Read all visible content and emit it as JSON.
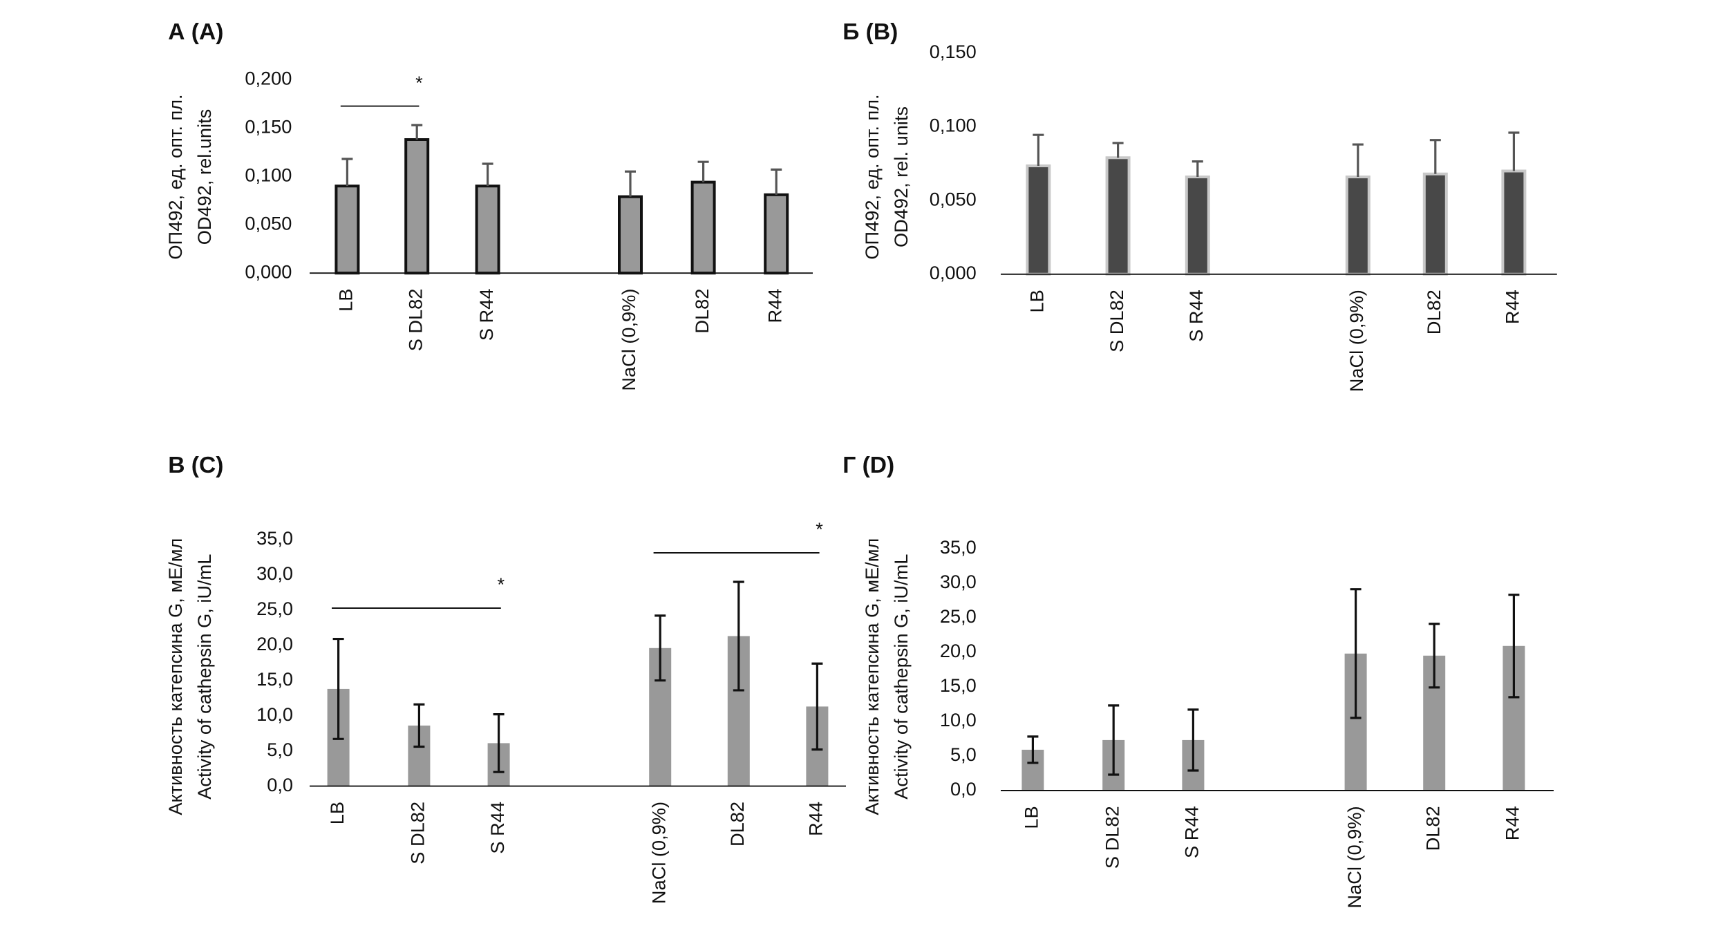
{
  "chart_data": [
    {
      "type": "bar",
      "title": "А (A)",
      "ylabel": [
        "ОП492, ед. опт. пл.",
        "OD492, rel.units"
      ],
      "categories": [
        "LB",
        "S DL82",
        "S R44",
        "NaCl (0,9%)",
        "DL82",
        "R44"
      ],
      "values": [
        0.09,
        0.138,
        0.09,
        0.079,
        0.094,
        0.081
      ],
      "errors": [
        0.028,
        0.015,
        0.023,
        0.026,
        0.021,
        0.026
      ],
      "error_bars": "upper",
      "color": "#999999",
      "edge_color": "#111111",
      "error_color": "#555555",
      "ylim": [
        0,
        0.2
      ],
      "yticks": [
        {
          "value": 0,
          "label": "0,000"
        },
        {
          "value": 0.05,
          "label": "0,050"
        },
        {
          "value": 0.1,
          "label": "0,100"
        },
        {
          "value": 0.15,
          "label": "0,150"
        },
        {
          "value": 0.2,
          "label": "0,200"
        }
      ],
      "significance": [
        {
          "label": "*",
          "categories": [
            "LB",
            "S DL82"
          ]
        }
      ]
    },
    {
      "type": "bar",
      "title": "Б (B)",
      "ylabel": [
        "ОП492, ед. опт. пл.",
        "OD492, rel. units"
      ],
      "categories": [
        "LB",
        "S DL82",
        "S R44",
        "NaCl (0,9%)",
        "DL82",
        "R44"
      ],
      "values": [
        0.0735,
        0.079,
        0.066,
        0.066,
        0.068,
        0.07
      ],
      "errors": [
        0.021,
        0.01,
        0.0105,
        0.022,
        0.023,
        0.026
      ],
      "error_bars": "upper",
      "color": "#484848",
      "edge_color": "#c8c8c8",
      "error_color": "#555555",
      "ylim": [
        0,
        0.15
      ],
      "yticks": [
        {
          "value": 0,
          "label": "0,000"
        },
        {
          "value": 0.05,
          "label": "0,050"
        },
        {
          "value": 0.1,
          "label": "0,100"
        },
        {
          "value": 0.15,
          "label": "0,150"
        }
      ],
      "significance": []
    },
    {
      "type": "bar",
      "title": "В (C)",
      "ylabel": [
        "Активность катепсина G, мЕ/мл",
        "Activity of cathepsin G, iU/mL"
      ],
      "categories": [
        "LB",
        "S DL82",
        "S R44",
        "NaCl (0,9%)",
        "DL82",
        "R44"
      ],
      "values": [
        13.8,
        8.6,
        6.1,
        19.6,
        21.3,
        11.3
      ],
      "errors": [
        7.1,
        3.0,
        4.1,
        4.6,
        7.7,
        6.1
      ],
      "error_bars": "both",
      "color": "#999999",
      "edge_color": "none",
      "error_color": "#111111",
      "ylim": [
        0,
        35
      ],
      "yticks": [
        {
          "value": 0,
          "label": "0,0"
        },
        {
          "value": 5,
          "label": "5,0"
        },
        {
          "value": 10,
          "label": "10,0"
        },
        {
          "value": 15,
          "label": "15,0"
        },
        {
          "value": 20,
          "label": "20,0"
        },
        {
          "value": 25,
          "label": "25,0"
        },
        {
          "value": 30,
          "label": "30,0"
        },
        {
          "value": 35,
          "label": "35,0"
        }
      ],
      "significance": [
        {
          "label": "*",
          "categories": [
            "LB",
            "S R44"
          ]
        },
        {
          "label": "*",
          "categories": [
            "NaCl (0,9%)",
            "R44"
          ]
        }
      ]
    },
    {
      "type": "bar",
      "title": "Г (D)",
      "ylabel": [
        "Активность катепсина G, мЕ/мл",
        "Activity of cathepsin G, iU/mL"
      ],
      "categories": [
        "LB",
        "S DL82",
        "S R44",
        "NaCl (0,9%)",
        "DL82",
        "R44"
      ],
      "values": [
        5.9,
        7.3,
        7.3,
        19.8,
        19.5,
        20.9
      ],
      "errors": [
        1.9,
        5.0,
        4.4,
        9.3,
        4.6,
        7.4
      ],
      "error_bars": "both",
      "color": "#999999",
      "edge_color": "none",
      "error_color": "#111111",
      "ylim": [
        0,
        35
      ],
      "yticks": [
        {
          "value": 0,
          "label": "0,0"
        },
        {
          "value": 5,
          "label": "5,0"
        },
        {
          "value": 10,
          "label": "10,0"
        },
        {
          "value": 15,
          "label": "15,0"
        },
        {
          "value": 20,
          "label": "20,0"
        },
        {
          "value": 25,
          "label": "25,0"
        },
        {
          "value": 30,
          "label": "30,0"
        },
        {
          "value": 35,
          "label": "35,0"
        }
      ],
      "significance": []
    }
  ]
}
